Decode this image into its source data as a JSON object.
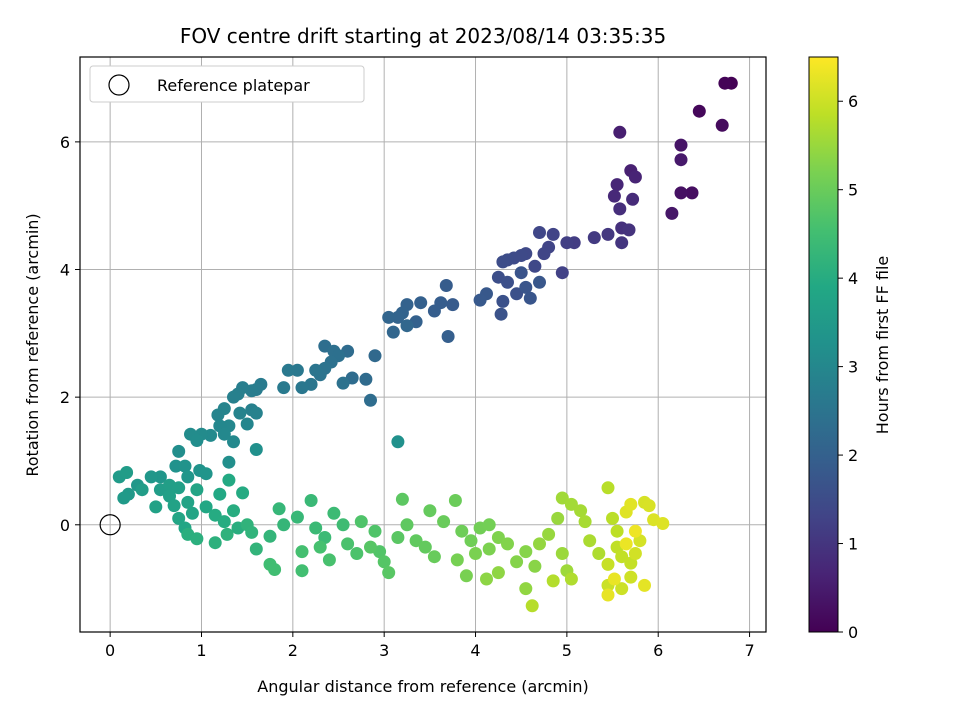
{
  "chart_data": {
    "type": "scatter",
    "title": "FOV centre drift starting at 2023/08/14 03:35:35",
    "xlabel": "Angular distance from reference (arcmin)",
    "ylabel": "Rotation from reference (arcmin)",
    "xlim": [
      -0.33,
      7.18
    ],
    "ylim": [
      -1.68,
      7.33
    ],
    "xticks": [
      0,
      1,
      2,
      3,
      4,
      5,
      6,
      7
    ],
    "yticks": [
      0,
      2,
      4,
      6
    ],
    "grid": true,
    "legend": {
      "placement": "top-left",
      "entries": [
        {
          "label": "Reference platepar",
          "marker": "open-circle"
        }
      ]
    },
    "reference_point": {
      "x": 0,
      "y": 0
    },
    "colorbar": {
      "label": "Hours from first FF file",
      "colormap": "viridis",
      "range": [
        0,
        6.5
      ],
      "ticks": [
        0,
        1,
        2,
        3,
        4,
        5,
        6
      ]
    },
    "series": [
      {
        "description_colored_by_time": true,
        "points": [
          [
            6.8,
            6.92,
            0.02
          ],
          [
            6.73,
            6.92,
            0.05
          ],
          [
            6.45,
            6.48,
            0.12
          ],
          [
            6.7,
            6.26,
            0.18
          ],
          [
            6.37,
            5.2,
            0.25
          ],
          [
            6.25,
            5.2,
            0.3
          ],
          [
            6.25,
            5.95,
            0.35
          ],
          [
            6.15,
            4.88,
            0.4
          ],
          [
            6.25,
            5.72,
            0.45
          ],
          [
            5.58,
            6.15,
            0.55
          ],
          [
            5.7,
            5.55,
            0.6
          ],
          [
            5.75,
            5.45,
            0.65
          ],
          [
            5.55,
            5.33,
            0.7
          ],
          [
            5.52,
            5.15,
            0.75
          ],
          [
            5.72,
            5.1,
            0.8
          ],
          [
            5.58,
            4.95,
            0.85
          ],
          [
            5.6,
            4.65,
            0.9
          ],
          [
            5.68,
            4.62,
            0.95
          ],
          [
            5.6,
            4.42,
            1.0
          ],
          [
            5.45,
            4.55,
            1.05
          ],
          [
            5.3,
            4.5,
            1.1
          ],
          [
            5.08,
            4.42,
            1.15
          ],
          [
            5.0,
            4.42,
            1.2
          ],
          [
            4.95,
            3.95,
            1.25
          ],
          [
            4.85,
            4.55,
            1.3
          ],
          [
            4.8,
            4.35,
            1.32
          ],
          [
            4.75,
            4.25,
            1.35
          ],
          [
            4.7,
            4.58,
            1.38
          ],
          [
            4.65,
            4.05,
            1.4
          ],
          [
            4.55,
            4.25,
            1.42
          ],
          [
            4.5,
            4.22,
            1.45
          ],
          [
            4.42,
            4.18,
            1.48
          ],
          [
            4.35,
            4.15,
            1.5
          ],
          [
            4.3,
            4.12,
            1.52
          ],
          [
            4.25,
            3.88,
            1.55
          ],
          [
            4.35,
            3.8,
            1.58
          ],
          [
            4.45,
            3.62,
            1.6
          ],
          [
            4.3,
            3.5,
            1.62
          ],
          [
            4.28,
            3.3,
            1.65
          ],
          [
            4.5,
            3.95,
            1.68
          ],
          [
            4.55,
            3.72,
            1.7
          ],
          [
            4.6,
            3.55,
            1.72
          ],
          [
            4.7,
            3.8,
            1.75
          ],
          [
            4.12,
            3.62,
            1.78
          ],
          [
            4.05,
            3.52,
            1.8
          ],
          [
            3.75,
            3.45,
            1.85
          ],
          [
            3.68,
            3.75,
            1.88
          ],
          [
            3.62,
            3.48,
            1.9
          ],
          [
            3.55,
            3.35,
            1.92
          ],
          [
            3.7,
            2.95,
            1.95
          ],
          [
            3.4,
            3.48,
            1.98
          ],
          [
            3.35,
            3.18,
            2.0
          ],
          [
            3.25,
            3.45,
            2.02
          ],
          [
            3.2,
            3.32,
            2.05
          ],
          [
            3.15,
            3.25,
            2.08
          ],
          [
            3.05,
            3.25,
            2.1
          ],
          [
            3.1,
            3.02,
            2.12
          ],
          [
            3.25,
            3.12,
            2.15
          ],
          [
            2.9,
            2.65,
            2.2
          ],
          [
            2.8,
            2.28,
            2.25
          ],
          [
            2.65,
            2.3,
            2.28
          ],
          [
            2.6,
            2.72,
            2.3
          ],
          [
            2.85,
            1.95,
            2.32
          ],
          [
            2.35,
            2.8,
            2.35
          ],
          [
            2.45,
            2.72,
            2.38
          ],
          [
            2.5,
            2.65,
            2.4
          ],
          [
            2.42,
            2.55,
            2.42
          ],
          [
            2.55,
            2.22,
            2.45
          ],
          [
            2.35,
            2.45,
            2.48
          ],
          [
            2.3,
            2.35,
            2.5
          ],
          [
            2.25,
            2.42,
            2.52
          ],
          [
            2.2,
            2.2,
            2.55
          ],
          [
            2.1,
            2.15,
            2.58
          ],
          [
            2.05,
            2.42,
            2.6
          ],
          [
            1.95,
            2.42,
            2.62
          ],
          [
            1.9,
            2.15,
            2.65
          ],
          [
            1.65,
            2.2,
            2.68
          ],
          [
            1.6,
            2.12,
            2.7
          ],
          [
            1.55,
            2.1,
            2.72
          ],
          [
            1.45,
            2.15,
            2.75
          ],
          [
            1.4,
            2.05,
            2.78
          ],
          [
            1.35,
            2.0,
            2.8
          ],
          [
            1.55,
            1.8,
            2.82
          ],
          [
            1.6,
            1.75,
            2.85
          ],
          [
            1.42,
            1.75,
            2.88
          ],
          [
            1.25,
            1.82,
            2.9
          ],
          [
            1.18,
            1.72,
            2.92
          ],
          [
            1.5,
            1.58,
            2.95
          ],
          [
            1.3,
            1.55,
            2.98
          ],
          [
            1.2,
            1.55,
            3.0
          ],
          [
            1.25,
            1.42,
            3.02
          ],
          [
            1.35,
            1.3,
            3.05
          ],
          [
            1.1,
            1.4,
            3.08
          ],
          [
            1.0,
            1.42,
            3.1
          ],
          [
            0.88,
            1.42,
            3.12
          ],
          [
            0.95,
            1.32,
            3.15
          ],
          [
            0.75,
            1.15,
            3.18
          ],
          [
            1.3,
            0.98,
            3.2
          ],
          [
            1.6,
            1.18,
            3.22
          ],
          [
            3.15,
            1.3,
            3.25
          ],
          [
            0.72,
            0.92,
            3.28
          ],
          [
            0.82,
            0.92,
            3.3
          ],
          [
            0.98,
            0.85,
            3.32
          ],
          [
            1.05,
            0.8,
            3.35
          ],
          [
            0.85,
            0.75,
            3.38
          ],
          [
            0.55,
            0.75,
            3.4
          ],
          [
            0.45,
            0.75,
            3.42
          ],
          [
            0.3,
            0.62,
            3.45
          ],
          [
            0.2,
            0.48,
            3.48
          ],
          [
            0.15,
            0.42,
            3.5
          ],
          [
            0.1,
            0.75,
            3.52
          ],
          [
            0.18,
            0.82,
            3.55
          ],
          [
            0.35,
            0.55,
            3.58
          ],
          [
            0.55,
            0.55,
            3.6
          ],
          [
            0.65,
            0.62,
            3.62
          ],
          [
            0.75,
            0.58,
            3.65
          ],
          [
            0.65,
            0.45,
            3.68
          ],
          [
            0.5,
            0.28,
            3.7
          ],
          [
            0.7,
            0.3,
            3.72
          ],
          [
            0.85,
            0.35,
            3.75
          ],
          [
            0.95,
            0.55,
            3.78
          ],
          [
            0.9,
            0.18,
            3.8
          ],
          [
            0.75,
            0.1,
            3.82
          ],
          [
            0.82,
            -0.05,
            3.85
          ],
          [
            1.05,
            0.28,
            3.88
          ],
          [
            1.2,
            0.48,
            3.9
          ],
          [
            1.3,
            0.7,
            3.92
          ],
          [
            1.45,
            0.5,
            3.95
          ],
          [
            1.15,
            0.15,
            3.98
          ],
          [
            1.25,
            0.05,
            4.0
          ],
          [
            1.35,
            0.22,
            4.02
          ],
          [
            1.4,
            -0.05,
            4.05
          ],
          [
            0.85,
            -0.15,
            4.08
          ],
          [
            0.95,
            -0.22,
            4.1
          ],
          [
            1.15,
            -0.28,
            4.12
          ],
          [
            1.28,
            -0.15,
            4.15
          ],
          [
            1.5,
            0.0,
            4.18
          ],
          [
            1.55,
            -0.12,
            4.2
          ],
          [
            1.6,
            -0.38,
            4.22
          ],
          [
            1.75,
            -0.18,
            4.25
          ],
          [
            1.9,
            0.0,
            4.28
          ],
          [
            1.85,
            0.25,
            4.3
          ],
          [
            2.05,
            0.12,
            4.32
          ],
          [
            2.2,
            0.38,
            4.35
          ],
          [
            2.25,
            -0.05,
            4.38
          ],
          [
            2.35,
            -0.2,
            4.4
          ],
          [
            2.45,
            0.18,
            4.42
          ],
          [
            2.55,
            0.0,
            4.45
          ],
          [
            1.75,
            -0.62,
            4.48
          ],
          [
            1.8,
            -0.7,
            4.5
          ],
          [
            2.1,
            -0.72,
            4.52
          ],
          [
            2.1,
            -0.42,
            4.55
          ],
          [
            2.3,
            -0.35,
            4.58
          ],
          [
            2.4,
            -0.55,
            4.6
          ],
          [
            2.6,
            -0.3,
            4.62
          ],
          [
            2.7,
            -0.45,
            4.65
          ],
          [
            2.75,
            0.05,
            4.68
          ],
          [
            2.9,
            -0.1,
            4.7
          ],
          [
            2.95,
            -0.42,
            4.72
          ],
          [
            3.0,
            -0.58,
            4.75
          ],
          [
            2.85,
            -0.35,
            4.78
          ],
          [
            3.05,
            -0.75,
            4.8
          ],
          [
            3.15,
            -0.2,
            4.82
          ],
          [
            3.2,
            0.4,
            4.85
          ],
          [
            3.25,
            0.0,
            4.88
          ],
          [
            3.35,
            -0.25,
            4.9
          ],
          [
            3.45,
            -0.35,
            4.92
          ],
          [
            3.5,
            0.22,
            4.95
          ],
          [
            3.55,
            -0.5,
            4.98
          ],
          [
            3.65,
            0.05,
            5.0
          ],
          [
            3.78,
            0.38,
            5.02
          ],
          [
            3.85,
            -0.1,
            5.05
          ],
          [
            3.95,
            -0.25,
            5.08
          ],
          [
            4.05,
            -0.05,
            5.1
          ],
          [
            4.15,
            0.0,
            5.12
          ],
          [
            3.8,
            -0.55,
            5.15
          ],
          [
            3.9,
            -0.8,
            5.18
          ],
          [
            4.0,
            -0.45,
            5.2
          ],
          [
            4.15,
            -0.38,
            5.22
          ],
          [
            4.25,
            -0.2,
            5.25
          ],
          [
            4.35,
            -0.3,
            5.28
          ],
          [
            4.45,
            -0.58,
            5.3
          ],
          [
            4.55,
            -0.42,
            5.32
          ],
          [
            4.65,
            -0.65,
            5.35
          ],
          [
            4.12,
            -0.85,
            5.38
          ],
          [
            4.25,
            -0.75,
            5.4
          ],
          [
            4.55,
            -1.0,
            5.42
          ],
          [
            4.7,
            -0.3,
            5.45
          ],
          [
            4.8,
            -0.15,
            5.48
          ],
          [
            4.9,
            0.1,
            5.5
          ],
          [
            4.95,
            -0.45,
            5.52
          ],
          [
            5.0,
            -0.72,
            5.55
          ],
          [
            4.95,
            0.42,
            5.58
          ],
          [
            5.05,
            0.32,
            5.6
          ],
          [
            5.15,
            0.22,
            5.62
          ],
          [
            5.2,
            0.05,
            5.65
          ],
          [
            5.25,
            -0.25,
            5.68
          ],
          [
            5.35,
            -0.45,
            5.7
          ],
          [
            5.05,
            -0.85,
            5.72
          ],
          [
            4.85,
            -0.88,
            5.75
          ],
          [
            4.62,
            -1.27,
            5.78
          ],
          [
            5.45,
            0.58,
            5.8
          ],
          [
            5.5,
            0.1,
            5.82
          ],
          [
            5.55,
            -0.1,
            5.85
          ],
          [
            5.55,
            -0.35,
            5.88
          ],
          [
            5.6,
            -0.5,
            5.9
          ],
          [
            5.7,
            -0.6,
            5.92
          ],
          [
            5.45,
            -0.62,
            5.95
          ],
          [
            5.45,
            -0.95,
            5.98
          ],
          [
            5.6,
            -1.0,
            6.0
          ],
          [
            5.7,
            -0.82,
            6.02
          ],
          [
            5.75,
            -0.45,
            6.05
          ],
          [
            5.8,
            -0.25,
            6.08
          ],
          [
            5.85,
            0.35,
            6.1
          ],
          [
            5.9,
            0.3,
            6.12
          ],
          [
            5.95,
            0.08,
            6.15
          ],
          [
            6.05,
            0.02,
            6.18
          ],
          [
            5.65,
            0.2,
            6.2
          ],
          [
            5.7,
            0.32,
            6.22
          ],
          [
            5.85,
            -0.95,
            6.25
          ],
          [
            5.45,
            -1.1,
            6.28
          ],
          [
            5.52,
            -0.85,
            6.3
          ],
          [
            5.65,
            -0.3,
            6.32
          ],
          [
            5.75,
            -0.1,
            6.35
          ]
        ]
      }
    ]
  }
}
